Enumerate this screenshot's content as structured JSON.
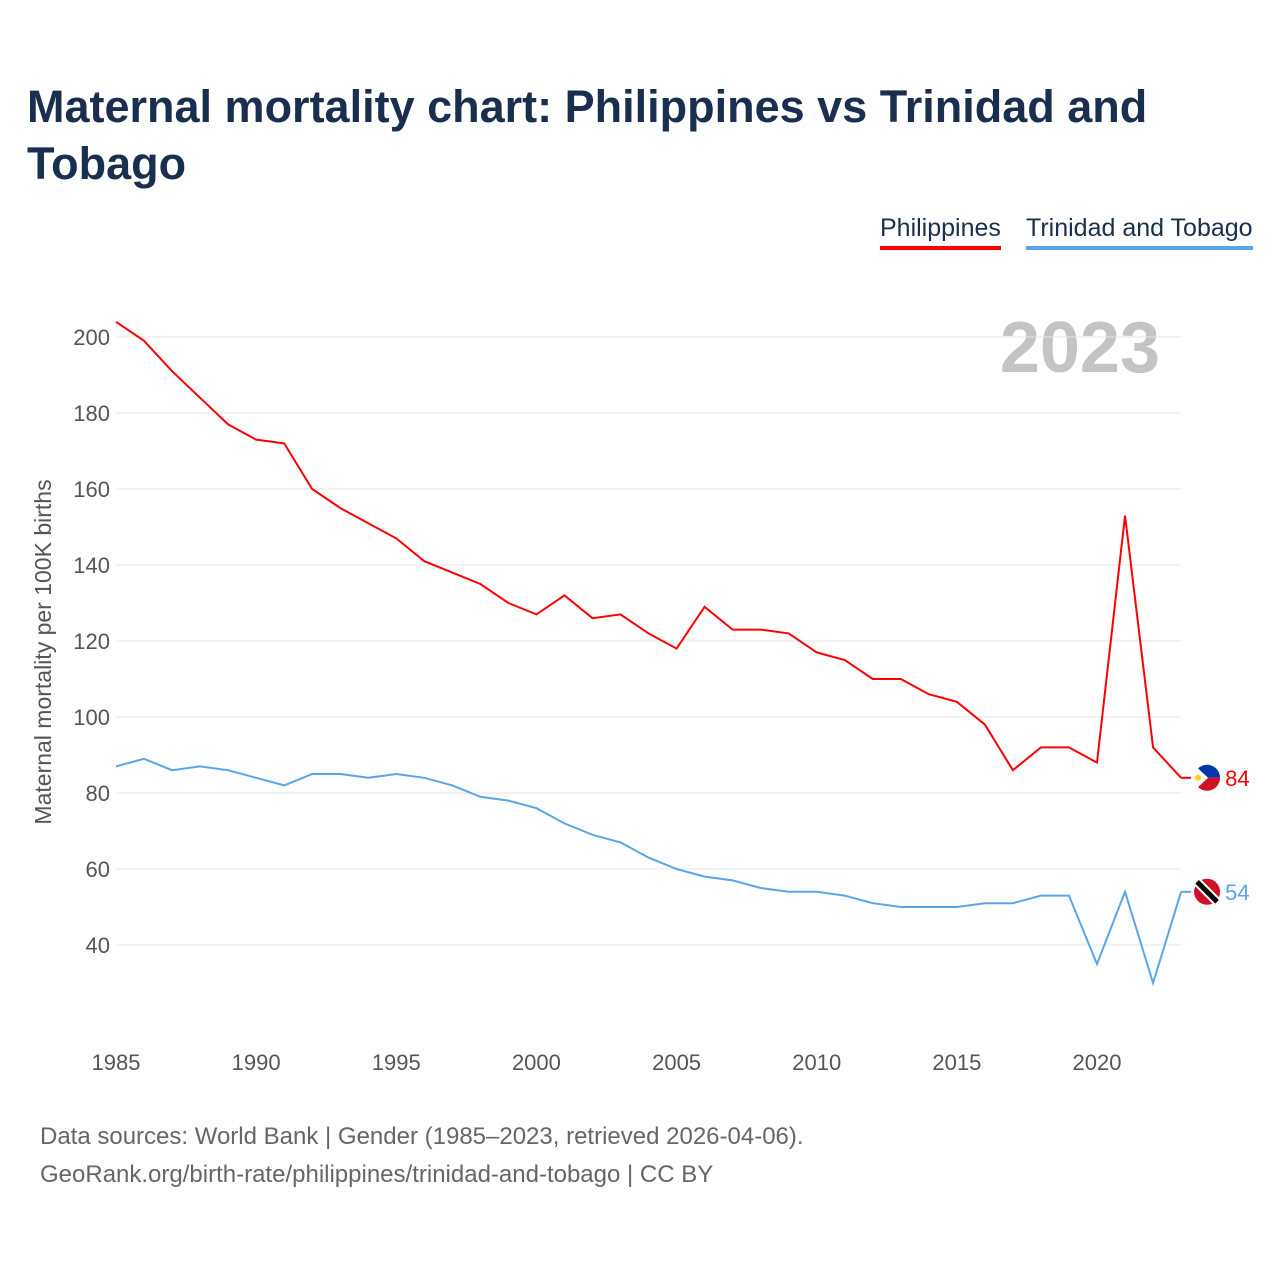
{
  "chart_data": {
    "type": "line",
    "title": "Maternal mortality chart: Philippines vs Trinidad and Tobago",
    "ylabel": "Maternal mortality per 100K births",
    "xlabel": "",
    "year_label": "2023",
    "ylim": [
      22,
      210
    ],
    "xlim": [
      1985,
      2023
    ],
    "yticks": [
      40,
      60,
      80,
      100,
      120,
      140,
      160,
      180,
      200
    ],
    "xticks": [
      1985,
      1990,
      1995,
      2000,
      2005,
      2010,
      2015,
      2020
    ],
    "grid": true,
    "legend_position": "top-right",
    "x": [
      1985,
      1986,
      1987,
      1988,
      1989,
      1990,
      1991,
      1992,
      1993,
      1994,
      1995,
      1996,
      1997,
      1998,
      1999,
      2000,
      2001,
      2002,
      2003,
      2004,
      2005,
      2006,
      2007,
      2008,
      2009,
      2010,
      2011,
      2012,
      2013,
      2014,
      2015,
      2016,
      2017,
      2018,
      2019,
      2020,
      2021,
      2022,
      2023
    ],
    "series": [
      {
        "name": "Philippines",
        "color": "#ff0000",
        "end_label": "84",
        "values": [
          204,
          199,
          191,
          184,
          177,
          173,
          172,
          160,
          155,
          151,
          147,
          141,
          138,
          135,
          130,
          127,
          132,
          126,
          127,
          122,
          118,
          129,
          123,
          123,
          122,
          117,
          115,
          110,
          110,
          106,
          104,
          98,
          86,
          92,
          92,
          88,
          153,
          92,
          84
        ]
      },
      {
        "name": "Trinidad and Tobago",
        "color": "#5aa5ea",
        "end_label": "54",
        "values": [
          87,
          89,
          86,
          87,
          86,
          84,
          82,
          85,
          85,
          84,
          85,
          84,
          82,
          79,
          78,
          76,
          72,
          69,
          67,
          63,
          60,
          58,
          57,
          55,
          54,
          54,
          53,
          51,
          50,
          50,
          50,
          51,
          51,
          53,
          53,
          35,
          54,
          30,
          54
        ]
      }
    ]
  },
  "footer": {
    "line1": "Data sources: World Bank | Gender (1985–2023, retrieved 2026-04-06).",
    "line2": "GeoRank.org/birth-rate/philippines/trinidad-and-tobago | CC BY"
  }
}
